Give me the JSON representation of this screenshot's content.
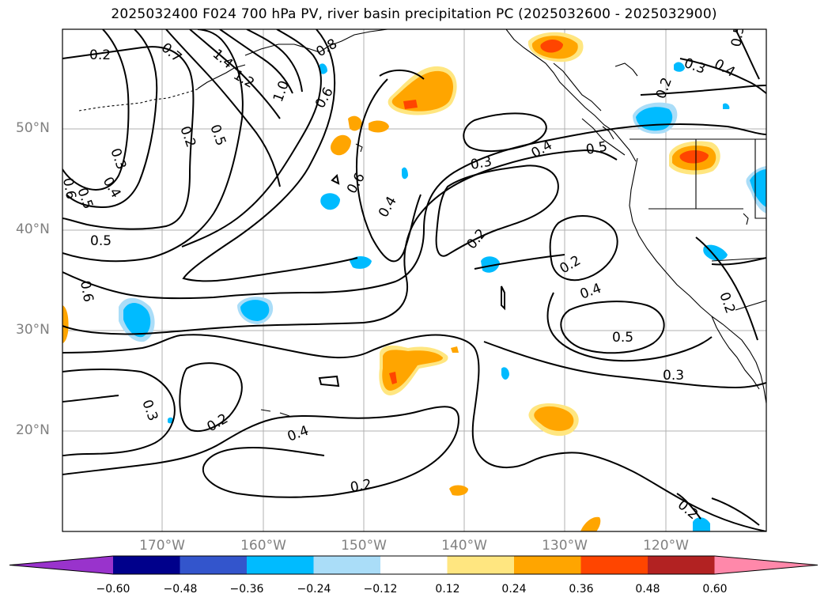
{
  "title": "2025032400 F024 700 hPa PV, river basin precipitation PC (2025032600 - 2025032900)",
  "lat_labels": [
    "50°N",
    "40°N",
    "30°N",
    "20°N"
  ],
  "lon_labels": [
    "170°W",
    "160°W",
    "150°W",
    "140°W",
    "130°W",
    "120°W"
  ],
  "colorbar": {
    "labels": [
      "−0.60",
      "−0.48",
      "−0.36",
      "−0.24",
      "−0.12",
      "0.12",
      "0.24",
      "0.36",
      "0.48",
      "0.60"
    ],
    "colors": [
      "#9933cc",
      "#00008b",
      "#3355cc",
      "#00bbff",
      "#aaddf8",
      "#ffffff",
      "#ffe680",
      "#ffa500",
      "#ff4500",
      "#b22222",
      "#ff88aa"
    ]
  },
  "contour_labels": [
    "0.2",
    "0.7",
    "1.4",
    "1.2",
    "1.0",
    "0.8",
    "0.6",
    "0.2",
    "0.5",
    "0.3",
    "0.4",
    "0.6",
    "0.5",
    "0.5",
    "0.6",
    "0.4",
    "0.3",
    "0.4",
    "0.5",
    "0.3",
    "0.4",
    "0.2",
    "0.5",
    "0.2",
    "0.6",
    "0.4",
    "0.5",
    "0.2",
    "0.3",
    "0.2",
    "0.3",
    "0.2",
    "0.4",
    "0.2",
    "0.2"
  ],
  "contour_field": "700 hPa PV",
  "shaded_field": "river basin precipitation PC"
}
